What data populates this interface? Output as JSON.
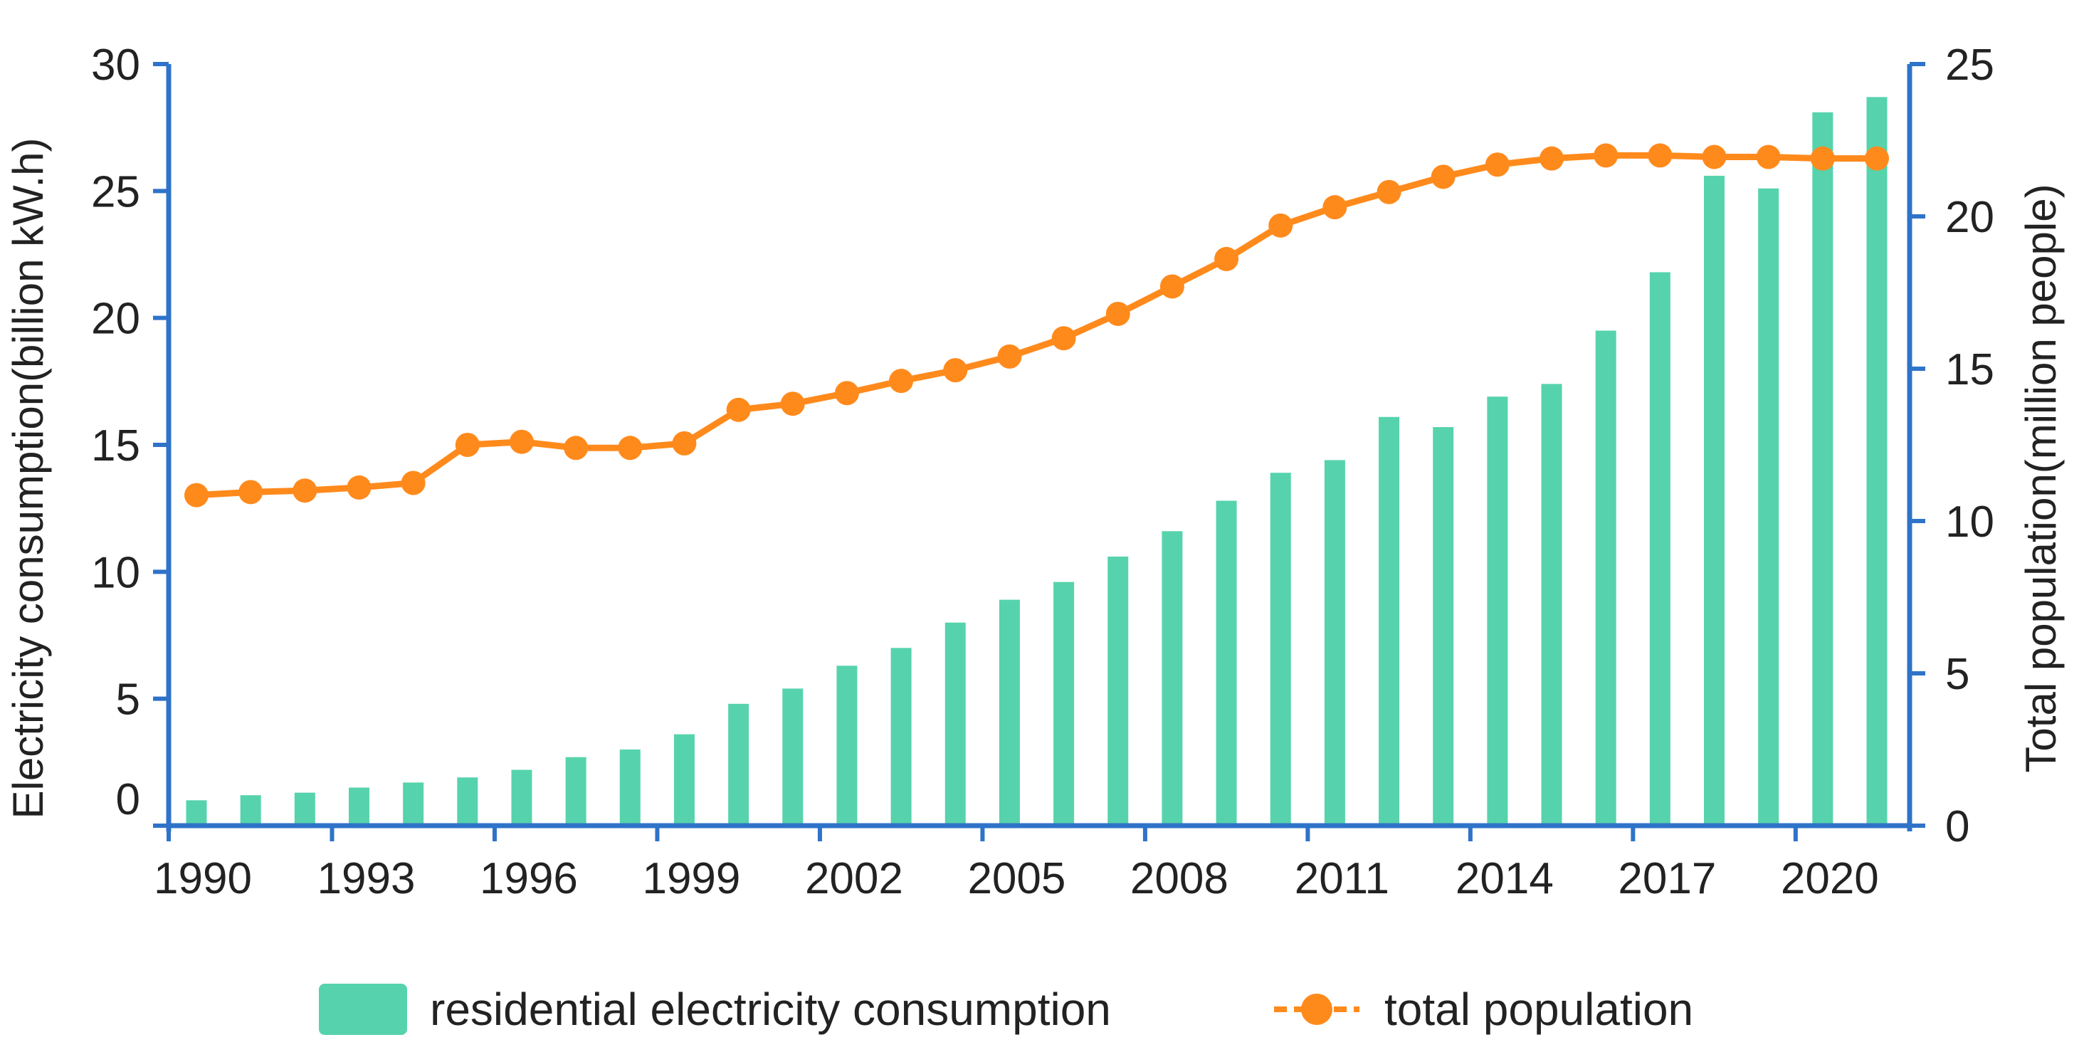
{
  "colors": {
    "bar": "#56d3ac",
    "line": "#ff8a1c",
    "axis": "#2f73c9",
    "text": "#222222"
  },
  "chart_data": {
    "type": "bar+line",
    "title": "",
    "x": [
      1990,
      1991,
      1992,
      1993,
      1994,
      1995,
      1996,
      1997,
      1998,
      1999,
      2000,
      2001,
      2002,
      2003,
      2004,
      2005,
      2006,
      2007,
      2008,
      2009,
      2010,
      2011,
      2012,
      2013,
      2014,
      2015,
      2016,
      2017,
      2018,
      2019,
      2020,
      2021
    ],
    "xticks": [
      "1990",
      "1993",
      "1996",
      "1999",
      "2002",
      "2005",
      "2008",
      "2011",
      "2014",
      "2017",
      "2020"
    ],
    "xtick_years": [
      1990,
      1993,
      1996,
      1999,
      2002,
      2005,
      2008,
      2011,
      2014,
      2017,
      2020
    ],
    "series": [
      {
        "name": "residential electricity consumption",
        "type": "bar",
        "axis": "left",
        "values": [
          1.0,
          1.2,
          1.3,
          1.5,
          1.7,
          1.9,
          2.2,
          2.7,
          3.0,
          3.6,
          4.8,
          5.4,
          6.3,
          7.0,
          8.0,
          8.9,
          9.6,
          10.6,
          11.6,
          12.8,
          13.9,
          14.4,
          16.1,
          15.7,
          16.9,
          17.4,
          19.5,
          21.8,
          25.6,
          25.1,
          28.1,
          28.7
        ]
      },
      {
        "name": "total population",
        "type": "line",
        "axis": "right",
        "values": [
          10.85,
          10.95,
          11.0,
          11.1,
          11.25,
          12.5,
          12.6,
          12.4,
          12.4,
          12.55,
          13.65,
          13.85,
          14.2,
          14.6,
          14.95,
          15.4,
          16.0,
          16.8,
          17.7,
          18.6,
          19.7,
          20.3,
          20.8,
          21.3,
          21.7,
          21.9,
          22.0,
          22.0,
          21.95,
          21.95,
          21.9,
          21.9
        ]
      }
    ],
    "y_left": {
      "label": "Electricity consumption(billion kW.h)",
      "range": [
        0,
        30
      ],
      "ticks": [
        "0",
        "5",
        "10",
        "15",
        "20",
        "25",
        "30"
      ],
      "tick_values": [
        0,
        5,
        10,
        15,
        20,
        25,
        30
      ]
    },
    "y_right": {
      "label": "Total population(million people)",
      "range": [
        0,
        25
      ],
      "ticks": [
        "0",
        "5",
        "10",
        "15",
        "20",
        "25"
      ],
      "tick_values": [
        0,
        5,
        10,
        15,
        20,
        25
      ]
    },
    "legend": {
      "placement": "bottom-center",
      "items": [
        "residential electricity consumption",
        "total population"
      ]
    },
    "grid": false
  }
}
